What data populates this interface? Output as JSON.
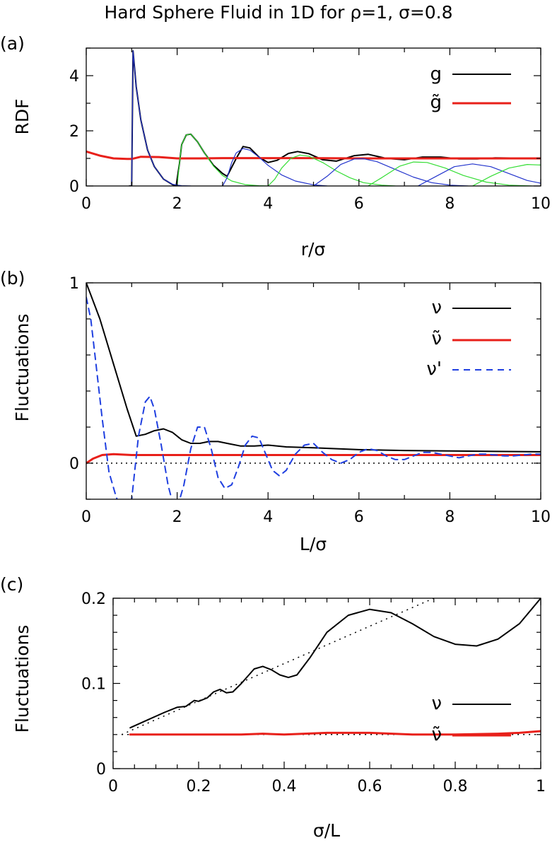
{
  "figure": {
    "title": "Hard Sphere Fluid in 1D for ρ=1, σ=0.8"
  },
  "colors": {
    "black": "#000000",
    "red": "#e8201a",
    "blue": "#2233cc",
    "green": "#33dd33",
    "dashed_blue": "#1f3fe0"
  },
  "chart_data": [
    {
      "type": "line",
      "panel_label": "(a)",
      "xlabel": "r/σ",
      "ylabel": "RDF",
      "xlim": [
        0,
        10
      ],
      "ylim": [
        0,
        5
      ],
      "xticks": [
        0,
        2,
        4,
        6,
        8,
        10
      ],
      "xtick_labels": [
        "0",
        "2",
        "4",
        "6",
        "8",
        "10"
      ],
      "yticks": [
        0,
        2,
        4
      ],
      "ytick_labels": [
        "0",
        "2",
        "4"
      ],
      "legend": [
        {
          "label": "g",
          "color": "#000000"
        },
        {
          "label": "g̃",
          "color": "#e8201a"
        }
      ],
      "series": [
        {
          "name": "g",
          "color": "#000000",
          "width": 2,
          "x": [
            0.95,
            1.0,
            1.03,
            1.1,
            1.2,
            1.35,
            1.5,
            1.7,
            1.9,
            1.98,
            2.05,
            2.1,
            2.2,
            2.3,
            2.45,
            2.6,
            2.8,
            3.0,
            3.1,
            3.3,
            3.45,
            3.6,
            3.8,
            4.0,
            4.2,
            4.45,
            4.65,
            4.9,
            5.2,
            5.5,
            5.9,
            6.2,
            6.6,
            7.0,
            7.4,
            7.8,
            8.2,
            8.6,
            9.0,
            9.5,
            10.0
          ],
          "y": [
            0,
            0,
            4.9,
            3.6,
            2.4,
            1.3,
            0.7,
            0.25,
            0.05,
            0.02,
            0.8,
            1.5,
            1.85,
            1.88,
            1.6,
            1.2,
            0.75,
            0.45,
            0.35,
            1.0,
            1.43,
            1.38,
            1.05,
            0.85,
            0.93,
            1.18,
            1.25,
            1.17,
            0.95,
            0.9,
            1.1,
            1.15,
            1.0,
            0.95,
            1.05,
            1.05,
            0.98,
            0.98,
            1.02,
            1.01,
            1.0
          ]
        },
        {
          "name": "g̃",
          "color": "#e8201a",
          "width": 3,
          "x": [
            0,
            0.3,
            0.6,
            0.9,
            1.0,
            1.2,
            1.6,
            2.0,
            2.5,
            3.0,
            4.0,
            5.0,
            6.0,
            7.0,
            8.0,
            9.0,
            10.0
          ],
          "y": [
            1.25,
            1.1,
            1.0,
            0.98,
            0.98,
            1.06,
            1.05,
            1.0,
            1.0,
            1.01,
            1.01,
            1.01,
            1.0,
            1.0,
            1.0,
            1.0,
            1.0
          ]
        },
        {
          "name": "shell-1",
          "color": "#2233cc",
          "width": 1.2,
          "x": [
            0.95,
            1.0,
            1.03,
            1.1,
            1.2,
            1.35,
            1.5,
            1.7,
            1.9,
            2.1,
            2.3
          ],
          "y": [
            0,
            0,
            4.9,
            3.6,
            2.4,
            1.3,
            0.7,
            0.25,
            0.06,
            0.01,
            0
          ]
        },
        {
          "name": "shell-2",
          "color": "#33dd33",
          "width": 1.2,
          "x": [
            2.0,
            2.05,
            2.1,
            2.2,
            2.3,
            2.45,
            2.6,
            2.8,
            3.0,
            3.2,
            3.5,
            3.8,
            4.0
          ],
          "y": [
            0,
            0.8,
            1.5,
            1.85,
            1.88,
            1.6,
            1.2,
            0.72,
            0.38,
            0.18,
            0.05,
            0.01,
            0
          ]
        },
        {
          "name": "shell-3",
          "color": "#2233cc",
          "width": 1.2,
          "x": [
            3.0,
            3.1,
            3.2,
            3.3,
            3.45,
            3.6,
            3.8,
            4.0,
            4.3,
            4.6,
            5.0,
            5.3
          ],
          "y": [
            0,
            0.3,
            0.85,
            1.2,
            1.36,
            1.3,
            1.05,
            0.75,
            0.4,
            0.18,
            0.04,
            0
          ]
        },
        {
          "name": "shell-4",
          "color": "#33dd33",
          "width": 1.2,
          "x": [
            4.0,
            4.15,
            4.3,
            4.5,
            4.7,
            4.9,
            5.2,
            5.5,
            5.8,
            6.1,
            6.5,
            6.8
          ],
          "y": [
            0,
            0.25,
            0.65,
            1.0,
            1.12,
            1.08,
            0.85,
            0.55,
            0.3,
            0.12,
            0.03,
            0
          ]
        },
        {
          "name": "shell-5",
          "color": "#2233cc",
          "width": 1.2,
          "x": [
            5.0,
            5.3,
            5.6,
            5.9,
            6.1,
            6.4,
            6.8,
            7.2,
            7.6,
            8.0,
            8.4
          ],
          "y": [
            0,
            0.35,
            0.78,
            0.98,
            0.99,
            0.88,
            0.6,
            0.32,
            0.12,
            0.03,
            0
          ]
        },
        {
          "name": "shell-6",
          "color": "#33dd33",
          "width": 1.2,
          "x": [
            6.2,
            6.5,
            6.9,
            7.2,
            7.5,
            7.9,
            8.3,
            8.8,
            9.3,
            9.8
          ],
          "y": [
            0,
            0.3,
            0.72,
            0.87,
            0.85,
            0.65,
            0.38,
            0.14,
            0.03,
            0
          ]
        },
        {
          "name": "shell-7",
          "color": "#2233cc",
          "width": 1.2,
          "x": [
            7.3,
            7.7,
            8.1,
            8.5,
            8.9,
            9.3,
            9.7,
            10.0
          ],
          "y": [
            0,
            0.35,
            0.7,
            0.8,
            0.7,
            0.45,
            0.2,
            0.1
          ]
        },
        {
          "name": "shell-8",
          "color": "#33dd33",
          "width": 1.2,
          "x": [
            8.5,
            8.9,
            9.3,
            9.7,
            10.0
          ],
          "y": [
            0,
            0.35,
            0.65,
            0.78,
            0.76
          ]
        }
      ]
    },
    {
      "type": "line",
      "panel_label": "(b)",
      "xlabel": "L/σ",
      "ylabel": "Fluctuations",
      "xlim": [
        0,
        10
      ],
      "ylim": [
        -0.2,
        1
      ],
      "xticks": [
        0,
        2,
        4,
        6,
        8,
        10
      ],
      "xtick_labels": [
        "0",
        "2",
        "4",
        "6",
        "8",
        "10"
      ],
      "yticks": [
        0,
        1
      ],
      "ytick_labels": [
        "0",
        "1"
      ],
      "legend": [
        {
          "label": "ν",
          "color": "#000000",
          "style": "solid"
        },
        {
          "label": "ν̃",
          "color": "#e8201a",
          "style": "solid"
        },
        {
          "label": "ν'",
          "color": "#1f3fe0",
          "style": "dashed"
        }
      ],
      "series": [
        {
          "name": "ν",
          "color": "#000000",
          "width": 2,
          "style": "solid",
          "x": [
            0,
            0.3,
            0.6,
            0.9,
            1.1,
            1.3,
            1.5,
            1.7,
            1.9,
            2.1,
            2.3,
            2.5,
            2.7,
            2.9,
            3.1,
            3.4,
            3.7,
            4.0,
            4.4,
            5.0,
            6.0,
            7.0,
            8.0,
            9.0,
            10.0
          ],
          "y": [
            1.0,
            0.8,
            0.55,
            0.3,
            0.15,
            0.16,
            0.18,
            0.19,
            0.17,
            0.13,
            0.11,
            0.11,
            0.12,
            0.12,
            0.11,
            0.095,
            0.095,
            0.1,
            0.09,
            0.085,
            0.075,
            0.07,
            0.068,
            0.065,
            0.063
          ]
        },
        {
          "name": "ν̃",
          "color": "#e8201a",
          "width": 3,
          "style": "solid",
          "x": [
            0,
            0.15,
            0.35,
            0.6,
            1.0,
            1.5,
            2.0,
            3.0,
            4.0,
            5.0,
            6.0,
            7.0,
            8.0,
            9.0,
            10.0
          ],
          "y": [
            0,
            0.025,
            0.045,
            0.05,
            0.045,
            0.045,
            0.045,
            0.045,
            0.045,
            0.045,
            0.045,
            0.045,
            0.045,
            0.045,
            0.045
          ]
        },
        {
          "name": "ν'",
          "color": "#1f3fe0",
          "width": 2,
          "style": "dashed",
          "x": [
            0,
            0.1,
            0.2,
            0.35,
            0.5,
            0.65,
            0.75,
            0.85,
            1.0,
            1.15,
            1.3,
            1.4,
            1.5,
            1.65,
            1.8,
            1.9,
            2.0,
            2.15,
            2.3,
            2.45,
            2.6,
            2.75,
            2.9,
            3.05,
            3.2,
            3.35,
            3.5,
            3.65,
            3.8,
            3.95,
            4.1,
            4.25,
            4.4,
            4.6,
            4.8,
            5.0,
            5.2,
            5.4,
            5.6,
            5.8,
            6.0,
            6.2,
            6.4,
            6.6,
            6.8,
            7.0,
            7.2,
            7.4,
            7.6,
            7.8,
            8.0,
            8.2,
            8.4,
            8.6,
            8.8,
            9.0,
            9.2,
            9.4,
            9.6,
            9.8,
            10.0
          ],
          "y": [
            0.92,
            0.8,
            0.58,
            0.25,
            -0.05,
            -0.18,
            -0.25,
            -0.25,
            -0.2,
            0.15,
            0.34,
            0.37,
            0.3,
            0.1,
            -0.12,
            -0.22,
            -0.25,
            -0.12,
            0.08,
            0.2,
            0.2,
            0.08,
            -0.08,
            -0.14,
            -0.12,
            -0.02,
            0.1,
            0.15,
            0.14,
            0.05,
            -0.04,
            -0.07,
            -0.04,
            0.05,
            0.1,
            0.11,
            0.06,
            0.02,
            0.0,
            0.02,
            0.06,
            0.08,
            0.07,
            0.04,
            0.02,
            0.02,
            0.04,
            0.06,
            0.06,
            0.05,
            0.04,
            0.03,
            0.04,
            0.05,
            0.05,
            0.045,
            0.04,
            0.04,
            0.045,
            0.05,
            0.05
          ]
        }
      ],
      "reference_line": {
        "y": 0,
        "style": "dotted",
        "color": "#000000"
      }
    },
    {
      "type": "line",
      "panel_label": "(c)",
      "xlabel": "σ/L",
      "ylabel": "Fluctuations",
      "xlim": [
        0,
        1
      ],
      "ylim": [
        0,
        0.2
      ],
      "xticks": [
        0,
        0.2,
        0.4,
        0.6,
        0.8,
        1
      ],
      "xtick_labels": [
        "0",
        "0.2",
        "0.4",
        "0.6",
        "0.8",
        "1"
      ],
      "yticks": [
        0,
        0.1,
        0.2
      ],
      "ytick_labels": [
        "0",
        "0.1",
        "0.2"
      ],
      "legend": [
        {
          "label": "ν",
          "color": "#000000"
        },
        {
          "label": "ν̃",
          "color": "#e8201a"
        }
      ],
      "series": [
        {
          "name": "ν",
          "color": "#000000",
          "width": 2,
          "x": [
            0.04,
            0.08,
            0.12,
            0.15,
            0.17,
            0.19,
            0.2,
            0.22,
            0.235,
            0.25,
            0.265,
            0.28,
            0.3,
            0.33,
            0.35,
            0.37,
            0.39,
            0.41,
            0.43,
            0.46,
            0.5,
            0.55,
            0.6,
            0.65,
            0.7,
            0.75,
            0.8,
            0.85,
            0.9,
            0.95,
            1.0
          ],
          "y": [
            0.048,
            0.057,
            0.066,
            0.072,
            0.073,
            0.08,
            0.079,
            0.083,
            0.09,
            0.093,
            0.089,
            0.09,
            0.1,
            0.117,
            0.12,
            0.116,
            0.11,
            0.107,
            0.11,
            0.13,
            0.16,
            0.18,
            0.187,
            0.183,
            0.17,
            0.155,
            0.146,
            0.144,
            0.152,
            0.17,
            0.2
          ]
        },
        {
          "name": "ν̃",
          "color": "#e8201a",
          "width": 3,
          "x": [
            0.04,
            0.1,
            0.2,
            0.3,
            0.35,
            0.4,
            0.5,
            0.6,
            0.7,
            0.8,
            0.9,
            0.95,
            1.0
          ],
          "y": [
            0.04,
            0.04,
            0.04,
            0.04,
            0.041,
            0.04,
            0.042,
            0.042,
            0.04,
            0.04,
            0.041,
            0.042,
            0.044
          ]
        }
      ],
      "reference_lines": [
        {
          "x": [
            0.02,
            0.75
          ],
          "y": [
            0.04,
            0.2
          ],
          "style": "dotted"
        },
        {
          "x": [
            0.02,
            1.0
          ],
          "y": [
            0.04,
            0.04
          ],
          "style": "dotted"
        }
      ]
    }
  ]
}
